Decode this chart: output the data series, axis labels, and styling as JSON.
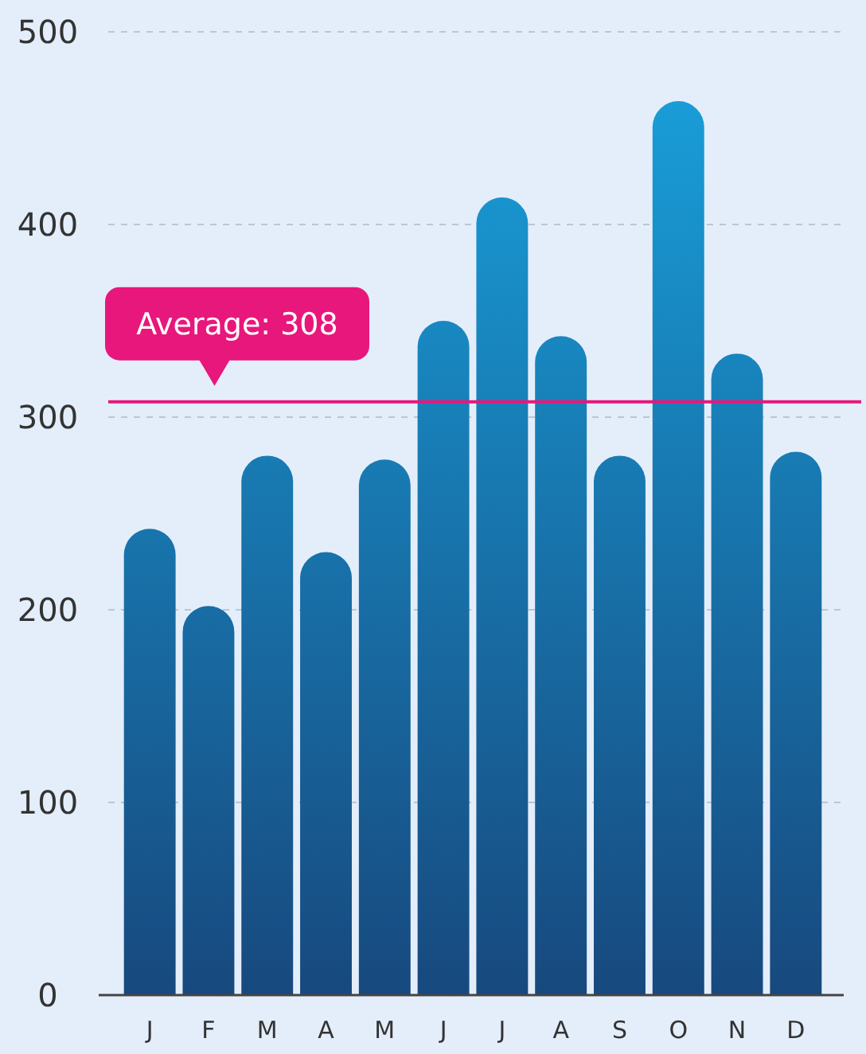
{
  "chart_data": {
    "type": "bar",
    "categories": [
      "J",
      "F",
      "M",
      "A",
      "M",
      "J",
      "J",
      "A",
      "S",
      "O",
      "N",
      "D"
    ],
    "values": [
      242,
      202,
      280,
      230,
      278,
      350,
      414,
      342,
      280,
      464,
      333,
      282
    ],
    "color": "#1c5a9c",
    "ylim": [
      0,
      500
    ],
    "yticks": [
      0,
      100,
      200,
      300,
      400,
      500
    ],
    "grid": "y",
    "ref_lines": [
      {
        "axis": "y",
        "value": 308,
        "label": "Average: 308",
        "color": "#e8177c"
      }
    ]
  }
}
